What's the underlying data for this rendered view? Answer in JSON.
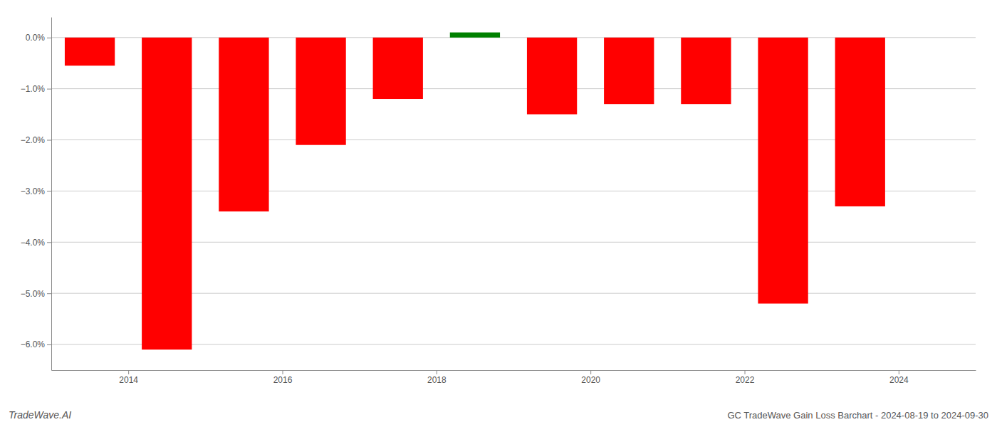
{
  "chart_data": {
    "type": "bar",
    "title": "GC TradeWave Gain Loss Barchart - 2024-08-19 to 2024-09-30",
    "annotations": [
      "TradeWave.AI"
    ],
    "x": [
      2013.5,
      2014.5,
      2015.5,
      2016.5,
      2017.5,
      2018.5,
      2019.5,
      2020.5,
      2021.5,
      2022.5,
      2023.5
    ],
    "values": [
      -0.55,
      -6.1,
      -3.4,
      -2.1,
      -1.2,
      0.1,
      -1.5,
      -1.3,
      -1.3,
      -5.2,
      -3.3
    ],
    "colors": [
      "#ff0000",
      "#ff0000",
      "#ff0000",
      "#ff0000",
      "#ff0000",
      "#008000",
      "#ff0000",
      "#ff0000",
      "#ff0000",
      "#ff0000",
      "#ff0000"
    ],
    "xlim": [
      2013.0,
      2025.0
    ],
    "xticks": [
      2014,
      2016,
      2018,
      2020,
      2022,
      2024
    ],
    "ylim": [
      -6.5,
      0.4
    ],
    "yticks": [
      {
        "value": 0.0,
        "label": "0.0%"
      },
      {
        "value": -1.0,
        "label": "−1.0%"
      },
      {
        "value": -2.0,
        "label": "−2.0%"
      },
      {
        "value": -3.0,
        "label": "−3.0%"
      },
      {
        "value": -4.0,
        "label": "−4.0%"
      },
      {
        "value": -5.0,
        "label": "−5.0%"
      },
      {
        "value": -6.0,
        "label": "−6.0%"
      }
    ],
    "grid": true
  }
}
